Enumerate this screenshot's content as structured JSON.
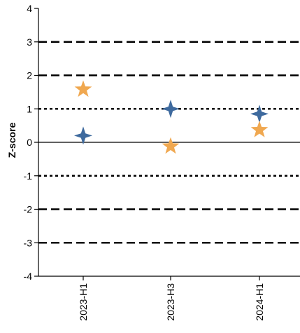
{
  "chart_data": {
    "type": "scatter",
    "title": "",
    "xlabel": "",
    "ylabel": "Z-score",
    "ylim": [
      -4,
      4
    ],
    "yticks": [
      -4,
      -3,
      -2,
      -1,
      0,
      1,
      2,
      3,
      4
    ],
    "categories": [
      "2023-H1",
      "2023-H3",
      "2024-H1"
    ],
    "series": [
      {
        "marker": "four-point-star",
        "color": "#3E6A9E",
        "values": [
          0.2,
          1.0,
          0.85
        ]
      },
      {
        "marker": "star",
        "color": "#F0A850",
        "values": [
          1.58,
          -0.12,
          0.37
        ]
      }
    ],
    "reference_lines": [
      {
        "y": 3,
        "style": "dashed"
      },
      {
        "y": 2,
        "style": "dashed"
      },
      {
        "y": 1,
        "style": "dotted"
      },
      {
        "y": 0,
        "style": "solid"
      },
      {
        "y": -1,
        "style": "dotted"
      },
      {
        "y": -2,
        "style": "dashed"
      },
      {
        "y": -3,
        "style": "dashed"
      }
    ],
    "grid": false,
    "legend": "none"
  }
}
